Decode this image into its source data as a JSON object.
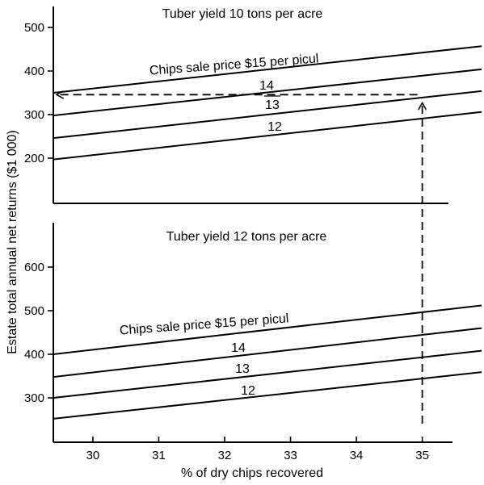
{
  "chart_data": [
    {
      "type": "line",
      "title": "Tuber yield 10 tons per acre",
      "xlim": [
        29.4,
        35.9
      ],
      "ylim": [
        100,
        540
      ],
      "yticks": [
        200,
        300,
        400,
        500
      ],
      "series": [
        {
          "name": "Chips sale price $15 per picul",
          "x": [
            29.4,
            35.9
          ],
          "y": [
            350,
            457
          ]
        },
        {
          "name": "14",
          "x": [
            29.4,
            35.9
          ],
          "y": [
            298,
            404
          ]
        },
        {
          "name": "13",
          "x": [
            29.4,
            35.9
          ],
          "y": [
            246,
            354
          ]
        },
        {
          "name": "12",
          "x": [
            29.4,
            35.9
          ],
          "y": [
            197,
            306
          ]
        }
      ],
      "annotation": {
        "type": "dashed-arrows",
        "x": 35,
        "y": 342
      }
    },
    {
      "type": "line",
      "title": "Tuber yield 12 tons per acre",
      "xlim": [
        29.4,
        35.9
      ],
      "ylim": [
        240,
        690
      ],
      "yticks": [
        300,
        400,
        500,
        600
      ],
      "xticks": [
        30,
        31,
        32,
        33,
        34,
        35
      ],
      "series": [
        {
          "name": "Chips sale price $15 per picul",
          "x": [
            29.4,
            35.9
          ],
          "y": [
            400,
            512
          ]
        },
        {
          "name": "14",
          "x": [
            29.4,
            35.9
          ],
          "y": [
            348,
            460
          ]
        },
        {
          "name": "13",
          "x": [
            29.4,
            35.9
          ],
          "y": [
            300,
            408
          ]
        },
        {
          "name": "12",
          "x": [
            29.4,
            35.9
          ],
          "y": [
            252,
            359
          ]
        }
      ]
    }
  ],
  "shared": {
    "xlabel": "% of dry chips recovered",
    "ylabel": "Estate total annual net returns ($1 000)"
  }
}
